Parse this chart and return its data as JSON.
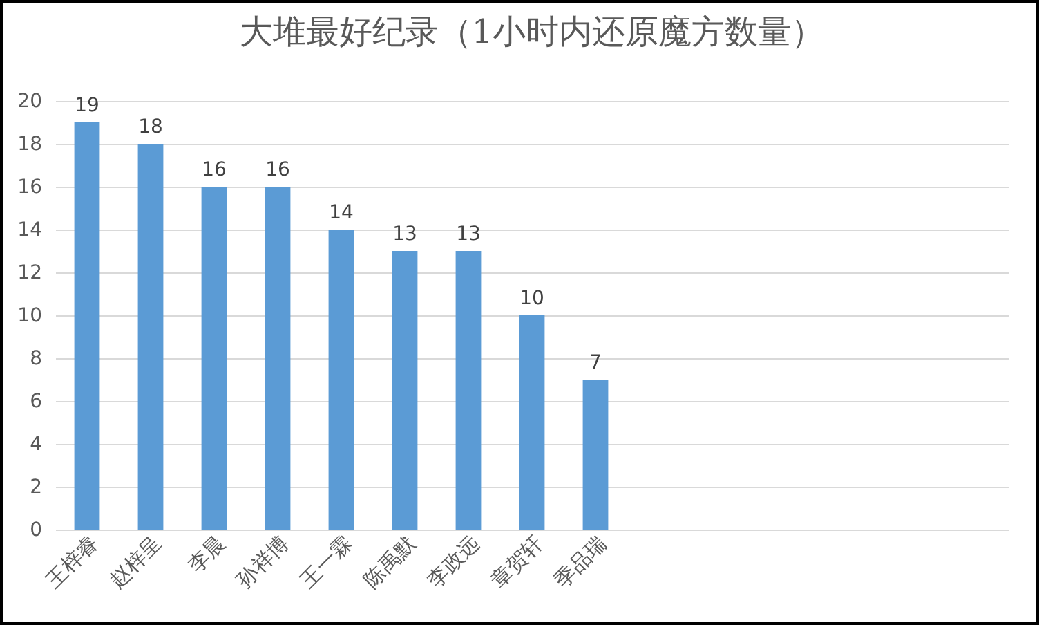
{
  "chart_data": {
    "type": "bar",
    "title": "大堆最好纪录（1小时内还原魔方数量）",
    "categories": [
      "王梓睿",
      "赵梓呈",
      "李晨",
      "孙祥博",
      "王一霖",
      "陈禹默",
      "李政远",
      "章贺轩",
      "季品瑞",
      null,
      null,
      null,
      null,
      null,
      null
    ],
    "values": [
      19,
      18,
      16,
      16,
      14,
      13,
      13,
      10,
      7,
      null,
      null,
      null,
      null,
      null,
      null
    ],
    "color": "#5b9bd5",
    "ylim": [
      0,
      20
    ],
    "yticks": [
      0,
      2,
      4,
      6,
      8,
      10,
      12,
      14,
      16,
      18,
      20
    ],
    "grid": "y",
    "data_labels": true
  }
}
